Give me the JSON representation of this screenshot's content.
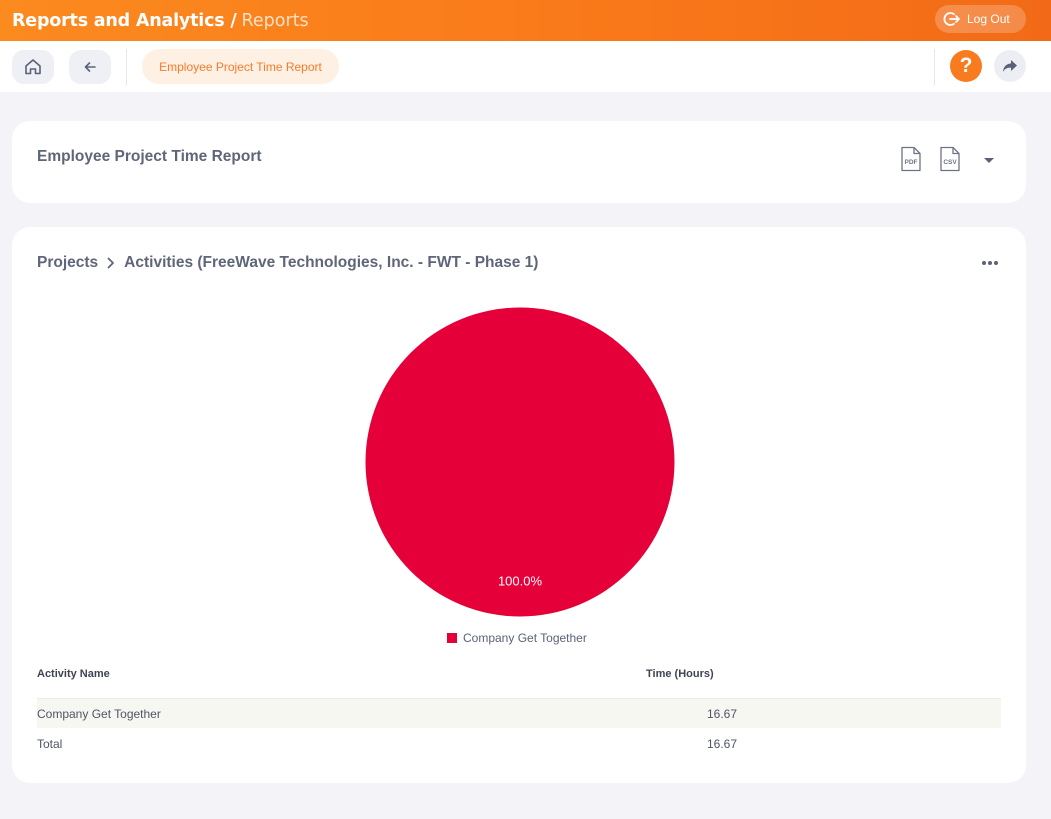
{
  "header": {
    "title": "Reports and Analytics /",
    "subtitle": "Reports",
    "logout_label": "Log Out"
  },
  "toolbar": {
    "breadcrumb_chip": "Employee Project Time Report",
    "help_label": "?"
  },
  "report": {
    "title": "Employee Project Time Report",
    "export_pdf": "PDF",
    "export_csv": "CSV"
  },
  "drill": {
    "crumb_projects": "Projects",
    "crumb_activities": "Activities (FreeWave Technologies, Inc. - FWT - Phase 1)"
  },
  "chart_data": {
    "type": "pie",
    "categories": [
      "Company Get Together"
    ],
    "values": [
      16.67
    ],
    "data_labels": [
      "100.0%"
    ],
    "colors": [
      "#e6003a"
    ],
    "legend": "bottom"
  },
  "table": {
    "headers": [
      "Activity Name",
      "Time (Hours)"
    ],
    "rows": [
      {
        "name": "Company Get Together",
        "hours": "16.67"
      }
    ],
    "total": {
      "name": "Total",
      "hours": "16.67"
    }
  }
}
